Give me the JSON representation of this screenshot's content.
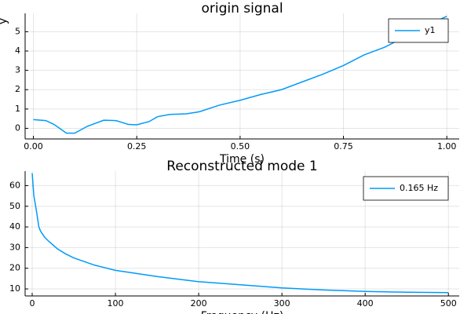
{
  "chart_data": [
    {
      "type": "line",
      "title": "origin signal",
      "xlabel": "Time (s)",
      "ylabel": "y",
      "x": [
        0,
        0.03,
        0.05,
        0.08,
        0.1,
        0.13,
        0.17,
        0.2,
        0.23,
        0.25,
        0.28,
        0.3,
        0.33,
        0.37,
        0.4,
        0.45,
        0.5,
        0.55,
        0.6,
        0.65,
        0.7,
        0.75,
        0.8,
        0.85,
        0.9,
        0.95,
        1.0
      ],
      "series": [
        {
          "name": "y1",
          "color": "#009af9",
          "values": [
            0.45,
            0.4,
            0.2,
            -0.25,
            -0.25,
            0.1,
            0.42,
            0.4,
            0.2,
            0.18,
            0.35,
            0.6,
            0.72,
            0.75,
            0.85,
            1.2,
            1.45,
            1.75,
            2.0,
            2.4,
            2.8,
            3.25,
            3.8,
            4.2,
            4.75,
            5.3,
            5.8
          ]
        }
      ],
      "xlim": [
        -0.02,
        1.03
      ],
      "ylim": [
        -0.55,
        5.95
      ],
      "xticks": [
        {
          "value": 0,
          "label": "0.00"
        },
        {
          "value": 0.25,
          "label": "0.25"
        },
        {
          "value": 0.5,
          "label": "0.50"
        },
        {
          "value": 0.75,
          "label": "0.75"
        },
        {
          "value": 1,
          "label": "1.00"
        }
      ],
      "yticks": [
        0,
        1,
        2,
        3,
        4,
        5
      ],
      "grid": true,
      "legend": "top right"
    },
    {
      "type": "line",
      "title": "Reconstructed mode 1",
      "xlabel": "Frequency (Hz)",
      "x": [
        0,
        2,
        5,
        8,
        10,
        15,
        20,
        30,
        40,
        50,
        75,
        100,
        150,
        200,
        250,
        300,
        350,
        400,
        450,
        500
      ],
      "series": [
        {
          "name": "0.165 Hz",
          "color": "#009af9",
          "values": [
            66,
            55,
            48,
            40,
            38,
            35,
            33,
            29.5,
            27,
            25,
            21.5,
            19,
            16,
            13.5,
            12,
            10.5,
            9.5,
            8.8,
            8.4,
            8.2
          ]
        }
      ],
      "xlim": [
        -8.5,
        513
      ],
      "ylim": [
        6.6,
        67
      ],
      "xticks": [
        0,
        100,
        200,
        300,
        400,
        500
      ],
      "yticks": [
        10,
        20,
        30,
        40,
        50,
        60
      ],
      "grid": true,
      "legend": "top right"
    }
  ]
}
